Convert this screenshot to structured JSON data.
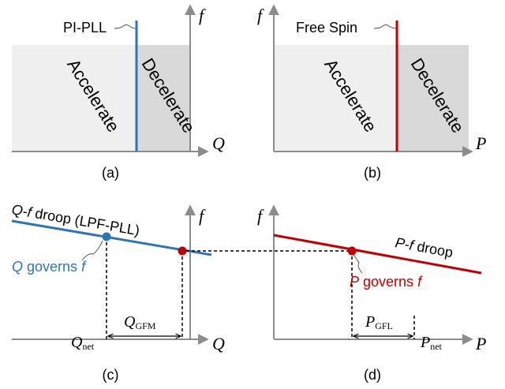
{
  "colors": {
    "axis": "#8c8c8c",
    "region_light": "#efefef",
    "region_dark": "#d9d9d9",
    "blue": "#2e75b6",
    "red": "#c00000",
    "black": "#000000"
  },
  "panel_a": {
    "caption": "(a)",
    "y_axis_label": "f",
    "x_axis_label": "Q",
    "boundary_label": "PI-PLL",
    "left_region": "Accelerate",
    "right_region": "Decelerate"
  },
  "panel_b": {
    "caption": "(b)",
    "y_axis_label": "f",
    "x_axis_label": "P",
    "boundary_label": "Free Spin",
    "left_region": "Accelerate",
    "right_region": "Decelerate"
  },
  "panel_c": {
    "caption": "(c)",
    "y_axis_label": "f",
    "x_axis_label": "Q",
    "droop_prefix": "Q-f",
    "droop_suffix": " droop (LPF-PLL)",
    "governs_var": "Q",
    "governs_text": " governs ",
    "governs_f": "f",
    "q_net_main": "Q",
    "q_net_sub": "net",
    "q_gfm_main": "Q",
    "q_gfm_sub": "GFM"
  },
  "panel_d": {
    "caption": "(d)",
    "y_axis_label": "f",
    "x_axis_label": "P",
    "droop_prefix": "P-f",
    "droop_suffix": " droop",
    "governs_var": "P",
    "governs_text": " governs ",
    "governs_f": "f",
    "p_gfl_main": "P",
    "p_gfl_sub": "GFL",
    "p_net_main": "P",
    "p_net_sub": "net"
  }
}
